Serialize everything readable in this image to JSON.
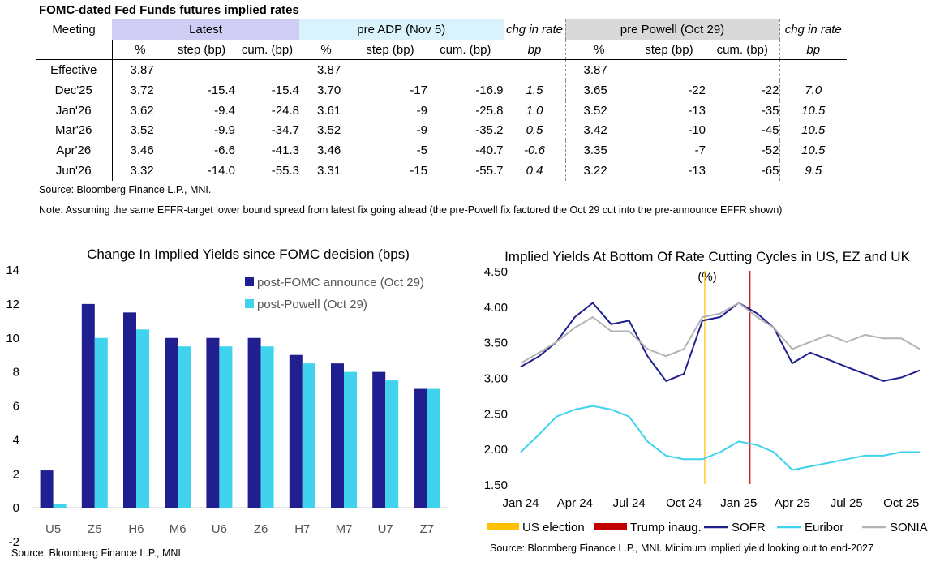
{
  "table": {
    "title": "FOMC-dated Fed Funds futures implied rates",
    "meeting_label": "Meeting",
    "groups": {
      "latest": "Latest",
      "pre_adp": "pre ADP (Nov 5)",
      "chg1": "chg in rate",
      "pre_powell": "pre Powell (Oct 29)",
      "chg2": "chg in rate"
    },
    "subheaders": {
      "pct": "%",
      "step": "step (bp)",
      "cum": "cum. (bp)",
      "bp": "bp"
    },
    "rows": [
      {
        "meeting": "Effective",
        "l_pct": "3.87",
        "l_step": "",
        "l_cum": "",
        "a_pct": "3.87",
        "a_step": "",
        "a_cum": "",
        "chg1": "",
        "p_pct": "3.87",
        "p_step": "",
        "p_cum": "",
        "chg2": ""
      },
      {
        "meeting": "Dec'25",
        "l_pct": "3.72",
        "l_step": "-15.4",
        "l_cum": "-15.4",
        "a_pct": "3.70",
        "a_step": "-17",
        "a_cum": "-16.9",
        "chg1": "1.5",
        "p_pct": "3.65",
        "p_step": "-22",
        "p_cum": "-22",
        "chg2": "7.0"
      },
      {
        "meeting": "Jan'26",
        "l_pct": "3.62",
        "l_step": "-9.4",
        "l_cum": "-24.8",
        "a_pct": "3.61",
        "a_step": "-9",
        "a_cum": "-25.8",
        "chg1": "1.0",
        "p_pct": "3.52",
        "p_step": "-13",
        "p_cum": "-35",
        "chg2": "10.5"
      },
      {
        "meeting": "Mar'26",
        "l_pct": "3.52",
        "l_step": "-9.9",
        "l_cum": "-34.7",
        "a_pct": "3.52",
        "a_step": "-9",
        "a_cum": "-35.2",
        "chg1": "0.5",
        "p_pct": "3.42",
        "p_step": "-10",
        "p_cum": "-45",
        "chg2": "10.5"
      },
      {
        "meeting": "Apr'26",
        "l_pct": "3.46",
        "l_step": "-6.6",
        "l_cum": "-41.3",
        "a_pct": "3.46",
        "a_step": "-5",
        "a_cum": "-40.7",
        "chg1": "-0.6",
        "p_pct": "3.35",
        "p_step": "-7",
        "p_cum": "-52",
        "chg2": "10.5"
      },
      {
        "meeting": "Jun'26",
        "l_pct": "3.32",
        "l_step": "-14.0",
        "l_cum": "-55.3",
        "a_pct": "3.31",
        "a_step": "-15",
        "a_cum": "-55.7",
        "chg1": "0.4",
        "p_pct": "3.22",
        "p_step": "-13",
        "p_cum": "-65",
        "chg2": "9.5"
      }
    ],
    "source": "Source: Bloomberg Finance L.P., MNI.",
    "note": "Note: Assuming the same  EFFR-target lower bound spread from latest fix going ahead (the pre-Powell fix factored the Oct 29 cut into the pre-announce EFFR shown)"
  },
  "colors": {
    "latest_header": "#cfcdf3",
    "pre_adp_header": "#daf2fb",
    "pre_powell_header": "#d9d9d9",
    "navy": "#1f1f8f",
    "cyan": "#3fd3ee",
    "grey": "#b3b3b3",
    "us_election": "#ffc000",
    "trump_inaug": "#c00000"
  },
  "chart_data": [
    {
      "type": "bar",
      "title": "Change In Implied Yields since FOMC decision (bps)",
      "categories": [
        "U5",
        "Z5",
        "H6",
        "M6",
        "U6",
        "Z6",
        "H7",
        "M7",
        "U7",
        "Z7"
      ],
      "series": [
        {
          "name": "post-FOMC announce (Oct 29)",
          "color": "#1f1f8f",
          "values": [
            2.2,
            12.0,
            11.5,
            10.0,
            10.0,
            10.0,
            9.0,
            8.5,
            8.0,
            7.0
          ]
        },
        {
          "name": "post-Powell (Oct 29)",
          "color": "#3fd3ee",
          "values": [
            0.2,
            10.0,
            10.5,
            9.5,
            9.5,
            9.5,
            8.5,
            8.0,
            7.5,
            7.0
          ]
        }
      ],
      "ylim": [
        -2,
        14
      ],
      "yticks": [
        "-2",
        "0",
        "2",
        "4",
        "6",
        "8",
        "10",
        "12",
        "14"
      ],
      "legend": "top-right",
      "source": "Source: Bloomberg Finance L.P., MNI"
    },
    {
      "type": "line",
      "title": "Implied Yields At Bottom Of Rate Cutting Cycles in US, EZ and UK",
      "ylabel": "(%)",
      "ylim": [
        1.5,
        4.5
      ],
      "yticks": [
        "1.50",
        "2.00",
        "2.50",
        "3.00",
        "3.50",
        "4.00",
        "4.50"
      ],
      "xticks": [
        "Jan 24",
        "Apr 24",
        "Jul 24",
        "Oct 24",
        "Jan 25",
        "Apr 25",
        "Jul 25",
        "Oct 25"
      ],
      "xtick_dates": [
        "2024-01-01",
        "2024-04-01",
        "2024-07-01",
        "2024-10-01",
        "2025-01-01",
        "2025-04-01",
        "2025-07-01",
        "2025-10-01"
      ],
      "x": [
        "2024-01-01",
        "2024-02-01",
        "2024-03-01",
        "2024-04-01",
        "2024-05-01",
        "2024-06-01",
        "2024-07-01",
        "2024-08-01",
        "2024-09-01",
        "2024-10-01",
        "2024-11-01",
        "2024-12-01",
        "2025-01-01",
        "2025-02-01",
        "2025-03-01",
        "2025-04-01",
        "2025-05-01",
        "2025-06-01",
        "2025-07-01",
        "2025-08-01",
        "2025-09-01",
        "2025-10-01",
        "2025-11-01"
      ],
      "vlines": [
        {
          "name": "US election",
          "date": "2024-11-05",
          "color": "#ffc000"
        },
        {
          "name": "Trump inaug.",
          "date": "2025-01-20",
          "color": "#c00000"
        }
      ],
      "series": [
        {
          "name": "SOFR",
          "color": "#1f1f8f",
          "values": [
            3.15,
            3.3,
            3.5,
            3.85,
            4.05,
            3.75,
            3.8,
            3.3,
            2.95,
            3.05,
            3.8,
            3.85,
            4.05,
            3.9,
            3.7,
            3.2,
            3.35,
            3.25,
            3.15,
            3.05,
            2.95,
            3.0,
            3.1
          ]
        },
        {
          "name": "Euribor",
          "color": "#3fd3ee",
          "values": [
            1.95,
            2.2,
            2.45,
            2.55,
            2.6,
            2.55,
            2.45,
            2.1,
            1.9,
            1.85,
            1.85,
            1.95,
            2.1,
            2.05,
            1.95,
            1.7,
            1.75,
            1.8,
            1.85,
            1.9,
            1.9,
            1.95,
            1.95
          ]
        },
        {
          "name": "SONIA",
          "color": "#b3b3b3",
          "values": [
            3.2,
            3.35,
            3.5,
            3.7,
            3.85,
            3.65,
            3.65,
            3.4,
            3.3,
            3.4,
            3.85,
            3.9,
            4.05,
            3.85,
            3.7,
            3.4,
            3.5,
            3.6,
            3.5,
            3.6,
            3.55,
            3.55,
            3.4
          ]
        }
      ],
      "legend": "bottom",
      "source": "Source: Bloomberg Finance L.P., MNI. Minimum implied yield looking out to end-2027"
    }
  ]
}
